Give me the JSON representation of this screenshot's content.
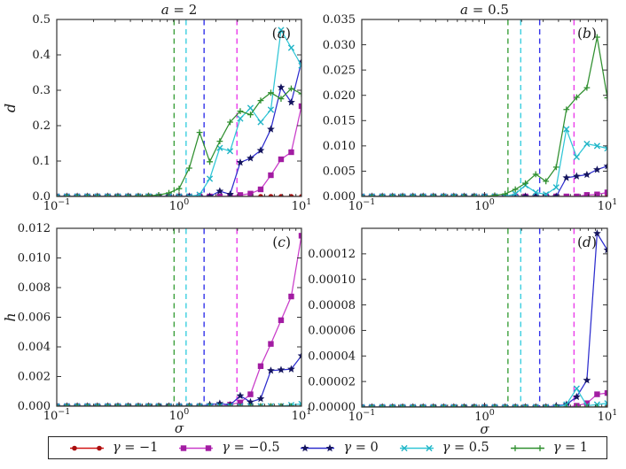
{
  "figure": {
    "background": "#ffffff",
    "axis_color": "#333333",
    "x_axis": {
      "scale": "log",
      "label": "σ",
      "lim": [
        0.1,
        10
      ],
      "major_ticks": [
        0.1,
        1,
        10
      ],
      "tick_labels": [
        {
          "base": "10",
          "exp": "−1"
        },
        {
          "base": "10",
          "exp": "0"
        },
        {
          "base": "10",
          "exp": "1"
        }
      ]
    }
  },
  "legend": {
    "entries": [
      {
        "label": "γ = −1",
        "lhs": "γ",
        "rest": " = −1",
        "color": "#d21414",
        "marker": "circle",
        "marker_color": "#a80f0f"
      },
      {
        "label": "γ = −0.5",
        "lhs": "γ",
        "rest": " = −0.5",
        "color": "#c93cc9",
        "marker": "square",
        "marker_color": "#a21ca2"
      },
      {
        "label": "γ = 0",
        "lhs": "γ",
        "rest": " = 0",
        "color": "#2d2dce",
        "marker": "star",
        "marker_color": "#15155e"
      },
      {
        "label": "γ = 0.5",
        "lhs": "γ",
        "rest": " = 0.5",
        "color": "#30c6d6",
        "marker": "x",
        "marker_color": "#22b4c6"
      },
      {
        "label": "γ = 1",
        "lhs": "γ",
        "rest": " = 1",
        "color": "#2f8f2f",
        "marker": "plus",
        "marker_color": "#2f8f2f"
      }
    ]
  },
  "chart_data": {
    "type": "line",
    "x_name": "sigma",
    "x_scale": "log",
    "x": [
      0.1,
      0.121,
      0.147,
      0.178,
      0.215,
      0.261,
      0.316,
      0.383,
      0.464,
      0.562,
      0.681,
      0.825,
      1.0,
      1.21,
      1.47,
      1.78,
      2.15,
      2.61,
      3.16,
      3.83,
      4.64,
      5.62,
      6.81,
      8.25,
      10.0
    ],
    "subplots": [
      {
        "key": "a",
        "title": {
          "lhs": "a",
          "rest": " = 2"
        },
        "corner_label": "a",
        "ylabel": "d",
        "xlabel": "",
        "show_xlabel": false,
        "ylim": [
          0,
          0.5
        ],
        "ytick_values": [
          0,
          0.1,
          0.2,
          0.3,
          0.4,
          0.5
        ],
        "ytick_labels": [
          "0.0",
          "0.1",
          "0.2",
          "0.3",
          "0.4",
          "0.5"
        ],
        "vlines": [
          {
            "x": 0.91,
            "color": "#3ca03c"
          },
          {
            "x": 1.14,
            "color": "#3ccfdf"
          },
          {
            "x": 1.6,
            "color": "#3434ea"
          },
          {
            "x": 2.97,
            "color": "#ea3cea"
          }
        ],
        "series": [
          {
            "legend": "γ = −1",
            "y": [
              0,
              0,
              0,
              0,
              0,
              0,
              0,
              0,
              0,
              0,
              0,
              0,
              0,
              0,
              0,
              0,
              0,
              0,
              0,
              0,
              0,
              0,
              0,
              0,
              0
            ]
          },
          {
            "legend": "γ = −0.5",
            "y": [
              0,
              0,
              0,
              0,
              0,
              0,
              0,
              0,
              0,
              0,
              0,
              0,
              0,
              0,
              0,
              0,
              0,
              0,
              0.004,
              0.008,
              0.02,
              0.06,
              0.105,
              0.125,
              0.255
            ]
          },
          {
            "legend": "γ = 0",
            "y": [
              0,
              0,
              0,
              0,
              0,
              0,
              0,
              0,
              0,
              0,
              0,
              0,
              0,
              0,
              0,
              0,
              0.015,
              0.006,
              0.096,
              0.108,
              0.13,
              0.19,
              0.308,
              0.266,
              0.38
            ]
          },
          {
            "legend": "γ = 0.5",
            "y": [
              0,
              0,
              0,
              0,
              0,
              0,
              0,
              0,
              0,
              0,
              0,
              0,
              0,
              0,
              0.005,
              0.05,
              0.137,
              0.128,
              0.22,
              0.25,
              0.21,
              0.245,
              0.47,
              0.42,
              0.37
            ]
          },
          {
            "legend": "γ = 1",
            "y": [
              0,
              0,
              0,
              0,
              0,
              0,
              0,
              0,
              0.001,
              0.002,
              0.004,
              0.01,
              0.022,
              0.08,
              0.181,
              0.098,
              0.156,
              0.21,
              0.241,
              0.231,
              0.271,
              0.293,
              0.276,
              0.305,
              0.29
            ]
          }
        ]
      },
      {
        "key": "b",
        "title": {
          "lhs": "a",
          "rest": " = 0.5"
        },
        "corner_label": "b",
        "ylabel": "",
        "xlabel": "",
        "show_xlabel": false,
        "ylim": [
          0,
          0.035
        ],
        "ytick_values": [
          0,
          0.005,
          0.01,
          0.015,
          0.02,
          0.025,
          0.03,
          0.035
        ],
        "ytick_labels": [
          "0.000",
          "0.005",
          "0.010",
          "0.015",
          "0.020",
          "0.025",
          "0.030",
          "0.035"
        ],
        "vlines": [
          {
            "x": 1.55,
            "color": "#3ca03c"
          },
          {
            "x": 1.97,
            "color": "#3ccfdf"
          },
          {
            "x": 2.81,
            "color": "#3434ea"
          },
          {
            "x": 5.35,
            "color": "#ea3cea"
          }
        ],
        "series": [
          {
            "legend": "γ = −1",
            "y": [
              0,
              0,
              0,
              0,
              0,
              0,
              0,
              0,
              0,
              0,
              0,
              0,
              0,
              0,
              0,
              0,
              0,
              0,
              0,
              0,
              0,
              0,
              0,
              0,
              0
            ]
          },
          {
            "legend": "γ = −0.5",
            "y": [
              0,
              0,
              0,
              0,
              0,
              0,
              0,
              0,
              0,
              0,
              0,
              0,
              0,
              0,
              0,
              0,
              0,
              0,
              0,
              0,
              0,
              0,
              0.0003,
              0.0004,
              0.0008
            ]
          },
          {
            "legend": "γ = 0",
            "y": [
              0,
              0,
              0,
              0,
              0,
              0,
              0,
              0,
              0,
              0,
              0,
              0,
              0,
              0,
              0,
              0,
              0,
              0,
              0,
              0,
              0.0037,
              0.004,
              0.0043,
              0.0053,
              0.006
            ]
          },
          {
            "legend": "γ = 0.5",
            "y": [
              0,
              0,
              0,
              0,
              0,
              0,
              0,
              0,
              0,
              0,
              0,
              0,
              0,
              0,
              0,
              0.0005,
              0.0022,
              0.0008,
              0.0004,
              0.0018,
              0.0133,
              0.0078,
              0.0104,
              0.01,
              0.0095
            ]
          },
          {
            "legend": "γ = 1",
            "y": [
              0,
              0,
              0,
              0,
              0,
              0,
              0,
              0,
              0,
              0,
              0,
              0,
              0,
              0.0002,
              0.0005,
              0.0014,
              0.0026,
              0.0044,
              0.003,
              0.0058,
              0.0172,
              0.0196,
              0.0215,
              0.0315,
              0.0195
            ]
          }
        ]
      },
      {
        "key": "c",
        "title": null,
        "corner_label": "c",
        "ylabel": "h",
        "xlabel": "σ",
        "show_xlabel": true,
        "ylim": [
          0,
          0.012
        ],
        "ytick_values": [
          0,
          0.002,
          0.004,
          0.006,
          0.008,
          0.01,
          0.012
        ],
        "ytick_labels": [
          "0.000",
          "0.002",
          "0.004",
          "0.006",
          "0.008",
          "0.010",
          "0.012"
        ],
        "vlines": [
          {
            "x": 0.91,
            "color": "#3ca03c"
          },
          {
            "x": 1.14,
            "color": "#3ccfdf"
          },
          {
            "x": 1.6,
            "color": "#3434ea"
          },
          {
            "x": 2.97,
            "color": "#ea3cea"
          }
        ],
        "series": [
          {
            "legend": "γ = −1",
            "y": [
              0,
              0,
              0,
              0,
              0,
              0,
              0,
              0,
              0,
              0,
              0,
              0,
              0,
              0,
              0,
              0,
              0,
              0,
              0,
              0,
              0,
              0,
              0,
              0,
              0
            ]
          },
          {
            "legend": "γ = −0.5",
            "y": [
              0,
              0,
              0,
              0,
              0,
              0,
              0,
              0,
              0,
              0,
              0,
              0,
              0,
              0,
              0,
              0,
              0,
              0.0001,
              0.00025,
              0.0008,
              0.0027,
              0.0042,
              0.0058,
              0.0074,
              0.0115
            ]
          },
          {
            "legend": "γ = 0",
            "y": [
              0,
              0,
              0,
              0,
              0,
              0,
              0,
              0,
              0,
              0,
              0,
              0,
              0,
              0,
              0,
              0.0001,
              0.00018,
              8e-05,
              0.0007,
              0.00028,
              0.0005,
              0.0024,
              0.00245,
              0.0025,
              0.0034
            ]
          },
          {
            "legend": "γ = 0.5",
            "y": [
              0,
              0,
              0,
              0,
              0,
              0,
              0,
              0,
              0,
              0,
              0,
              0,
              0,
              0,
              0,
              0,
              0,
              0,
              0,
              0,
              0,
              0,
              0,
              8e-05,
              0.00015
            ]
          },
          {
            "legend": "γ = 1",
            "y": [
              0,
              0,
              0,
              0,
              0,
              0,
              0,
              0,
              0,
              0,
              0,
              0,
              0,
              0,
              0,
              0,
              0,
              0,
              0,
              0,
              0,
              0,
              0,
              0,
              0
            ]
          }
        ]
      },
      {
        "key": "d",
        "title": null,
        "corner_label": "d",
        "ylabel": "",
        "xlabel": "σ",
        "show_xlabel": true,
        "ylim": [
          0,
          0.00014
        ],
        "ytick_values": [
          0,
          2e-05,
          4e-05,
          6e-05,
          8e-05,
          0.0001,
          0.00012
        ],
        "ytick_labels": [
          "0.00000",
          "0.00002",
          "0.00004",
          "0.00006",
          "0.00008",
          "0.00010",
          "0.00012"
        ],
        "vlines": [
          {
            "x": 1.55,
            "color": "#3ca03c"
          },
          {
            "x": 1.97,
            "color": "#3ccfdf"
          },
          {
            "x": 2.81,
            "color": "#3434ea"
          },
          {
            "x": 5.35,
            "color": "#ea3cea"
          }
        ],
        "series": [
          {
            "legend": "γ = −1",
            "y": [
              0,
              0,
              0,
              0,
              0,
              0,
              0,
              0,
              0,
              0,
              0,
              0,
              0,
              0,
              0,
              0,
              0,
              0,
              0,
              0,
              0,
              0,
              0,
              0,
              0
            ]
          },
          {
            "legend": "γ = −0.5",
            "y": [
              0,
              0,
              0,
              0,
              0,
              0,
              0,
              0,
              0,
              0,
              0,
              0,
              0,
              0,
              0,
              0,
              0,
              0,
              0,
              0,
              0,
              1e-06,
              3e-06,
              1e-05,
              1.1e-05
            ]
          },
          {
            "legend": "γ = 0",
            "y": [
              0,
              0,
              0,
              0,
              0,
              0,
              0,
              0,
              0,
              0,
              0,
              0,
              0,
              0,
              0,
              0,
              0,
              0,
              0,
              1e-06,
              2e-06,
              8e-06,
              2.1e-05,
              0.000136,
              0.000123
            ]
          },
          {
            "legend": "γ = 0.5",
            "y": [
              0,
              0,
              0,
              0,
              0,
              0,
              0,
              0,
              0,
              0,
              0,
              0,
              0,
              0,
              0,
              0,
              0,
              0,
              0,
              0,
              2e-06,
              1.45e-05,
              1e-06,
              2e-06,
              3e-06
            ]
          },
          {
            "legend": "γ = 1",
            "y": [
              0,
              0,
              0,
              0,
              0,
              0,
              0,
              0,
              0,
              0,
              0,
              0,
              0,
              0,
              0,
              0,
              0,
              0,
              0,
              0,
              0,
              0,
              0,
              0,
              0
            ]
          }
        ]
      }
    ]
  }
}
